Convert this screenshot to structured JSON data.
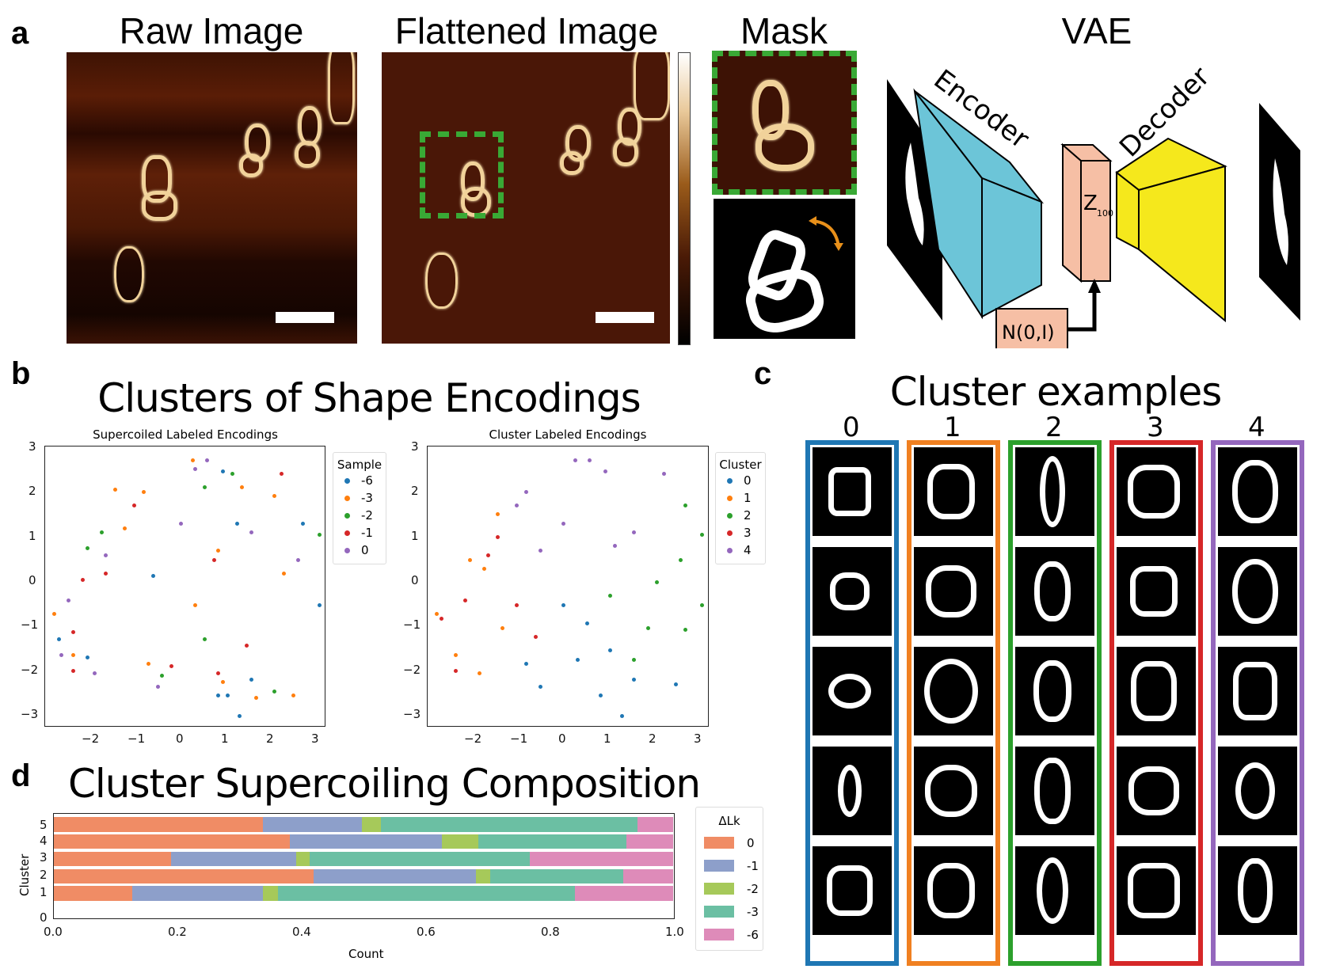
{
  "panel_a": {
    "label": "a",
    "raw_image_title": "Raw Image",
    "flattened_image_title": "Flattened Image",
    "mask_title": "Mask",
    "vae_title": "VAE",
    "vae": {
      "encoder_label": "Encoder",
      "decoder_label": "Decoder",
      "latent_label": "Z",
      "latent_subscript": "100",
      "prior_label": "N(0,I)",
      "colors": {
        "encoder": "#6cc5d8",
        "decoder": "#f5e81c",
        "latent": "#f6bfa5"
      }
    },
    "highlight_color": "#39a935",
    "rotation_arrow_color": "#e8901a"
  },
  "panel_b": {
    "label": "b",
    "title": "Clusters of Shape Encodings",
    "left_plot": {
      "title": "Supercoiled Labeled Encodings",
      "legend_title": "Sample",
      "legend": [
        {
          "label": "-6",
          "color": "#1f77b4"
        },
        {
          "label": "-3",
          "color": "#ff7f0e"
        },
        {
          "label": "-2",
          "color": "#2ca02c"
        },
        {
          "label": "-1",
          "color": "#d62728"
        },
        {
          "label": "0",
          "color": "#9467bd"
        }
      ]
    },
    "right_plot": {
      "title": "Cluster Labeled Encodings",
      "legend_title": "Cluster",
      "legend": [
        {
          "label": "0",
          "color": "#1f77b4"
        },
        {
          "label": "1",
          "color": "#ff7f0e"
        },
        {
          "label": "2",
          "color": "#2ca02c"
        },
        {
          "label": "3",
          "color": "#d62728"
        },
        {
          "label": "4",
          "color": "#9467bd"
        }
      ]
    },
    "x_ticks": [
      "−2",
      "−1",
      "0",
      "1",
      "2",
      "3"
    ],
    "y_ticks": [
      "3",
      "2",
      "1",
      "0",
      "−1",
      "−2",
      "−3"
    ]
  },
  "panel_c": {
    "label": "c",
    "title": "Cluster examples",
    "columns": [
      {
        "label": "0",
        "color": "#1f77b4"
      },
      {
        "label": "1",
        "color": "#f08021"
      },
      {
        "label": "2",
        "color": "#2ca02c"
      },
      {
        "label": "3",
        "color": "#d62728"
      },
      {
        "label": "4",
        "color": "#9467bd"
      }
    ]
  },
  "panel_d": {
    "label": "d",
    "title": "Cluster Supercoiling Composition",
    "xlabel": "Count",
    "ylabel": "Cluster",
    "x_ticks": [
      "0.0",
      "0.2",
      "0.4",
      "0.6",
      "0.8",
      "1.0"
    ],
    "y_ticks": [
      "5",
      "4",
      "3",
      "2",
      "1",
      "0"
    ],
    "legend_title": "ΔLk",
    "legend": [
      {
        "label": "0",
        "color": "#f08c65"
      },
      {
        "label": "-1",
        "color": "#8d9fca"
      },
      {
        "label": "-2",
        "color": "#a6c95a"
      },
      {
        "label": "-3",
        "color": "#6bbfa3"
      },
      {
        "label": "-6",
        "color": "#de8bb9"
      }
    ]
  },
  "chart_data": [
    {
      "type": "scatter",
      "title": "Supercoiled Labeled Encodings",
      "xlabel": "",
      "ylabel": "",
      "xlim": [
        -2.9,
        3.1
      ],
      "ylim": [
        -3.2,
        3.0
      ],
      "legend_title": "Sample",
      "series": [
        {
          "name": "-6",
          "points": [
            [
              0.9,
              2.45
            ],
            [
              2.6,
              1.3
            ],
            [
              1.2,
              1.3
            ],
            [
              -2.6,
              -1.25
            ],
            [
              -2.0,
              -1.65
            ],
            [
              0.8,
              -2.5
            ],
            [
              1.0,
              -2.5
            ],
            [
              1.25,
              -2.95
            ],
            [
              1.5,
              -2.15
            ],
            [
              2.95,
              -0.5
            ],
            [
              -0.6,
              0.15
            ]
          ]
        },
        {
          "name": "-3",
          "points": [
            [
              0.25,
              2.7
            ],
            [
              -1.4,
              2.05
            ],
            [
              -0.8,
              2.0
            ],
            [
              1.3,
              2.1
            ],
            [
              2.0,
              1.9
            ],
            [
              -1.2,
              1.2
            ],
            [
              0.8,
              0.7
            ],
            [
              2.2,
              0.2
            ],
            [
              -2.7,
              -0.7
            ],
            [
              -2.3,
              -1.6
            ],
            [
              0.9,
              -2.2
            ],
            [
              2.4,
              -2.5
            ],
            [
              1.6,
              -2.55
            ],
            [
              -0.7,
              -1.8
            ],
            [
              0.3,
              -0.5
            ]
          ]
        },
        {
          "name": "-2",
          "points": [
            [
              1.1,
              2.4
            ],
            [
              0.5,
              2.1
            ],
            [
              -1.7,
              1.1
            ],
            [
              -2.0,
              0.75
            ],
            [
              2.95,
              1.05
            ],
            [
              -0.4,
              -2.05
            ],
            [
              2.0,
              -2.4
            ],
            [
              0.5,
              -1.25
            ]
          ]
        },
        {
          "name": "-1",
          "points": [
            [
              2.15,
              2.4
            ],
            [
              -1.0,
              1.7
            ],
            [
              -2.1,
              0.05
            ],
            [
              -2.3,
              -1.1
            ],
            [
              -2.3,
              -1.95
            ],
            [
              -0.2,
              -1.85
            ],
            [
              0.8,
              -2.0
            ],
            [
              1.4,
              -1.4
            ],
            [
              0.7,
              0.5
            ],
            [
              -1.6,
              0.2
            ]
          ]
        },
        {
          "name": "0",
          "points": [
            [
              0.55,
              2.7
            ],
            [
              0.3,
              2.5
            ],
            [
              -1.6,
              0.6
            ],
            [
              -2.4,
              -0.4
            ],
            [
              -2.55,
              -1.6
            ],
            [
              -1.85,
              -2.0
            ],
            [
              -0.5,
              -2.3
            ],
            [
              2.5,
              0.5
            ],
            [
              1.5,
              1.1
            ],
            [
              0.0,
              1.3
            ]
          ]
        }
      ]
    },
    {
      "type": "scatter",
      "title": "Cluster Labeled Encodings",
      "xlabel": "",
      "ylabel": "",
      "xlim": [
        -2.9,
        3.1
      ],
      "ylim": [
        -3.2,
        3.0
      ],
      "legend_title": "Cluster",
      "series": [
        {
          "name": "0",
          "points": [
            [
              0.0,
              -0.5
            ],
            [
              0.5,
              -0.9
            ],
            [
              1.0,
              -1.5
            ],
            [
              1.25,
              -2.95
            ],
            [
              0.8,
              -2.5
            ],
            [
              -0.5,
              -2.3
            ],
            [
              -0.8,
              -1.8
            ],
            [
              1.5,
              -2.15
            ],
            [
              2.4,
              -2.25
            ],
            [
              0.3,
              -1.7
            ]
          ]
        },
        {
          "name": "1",
          "points": [
            [
              -2.7,
              -0.7
            ],
            [
              -2.3,
              -1.6
            ],
            [
              -1.8,
              -2.0
            ],
            [
              -1.4,
              1.5
            ],
            [
              -2.0,
              0.5
            ],
            [
              -1.3,
              -1.0
            ],
            [
              -1.7,
              0.3
            ]
          ]
        },
        {
          "name": "2",
          "points": [
            [
              2.6,
              1.7
            ],
            [
              2.95,
              1.05
            ],
            [
              2.5,
              0.5
            ],
            [
              2.95,
              -0.5
            ],
            [
              1.8,
              -1.0
            ],
            [
              1.5,
              -1.7
            ],
            [
              2.0,
              0.0
            ],
            [
              1.0,
              -0.3
            ],
            [
              2.6,
              -1.05
            ]
          ]
        },
        {
          "name": "3",
          "points": [
            [
              -2.3,
              -1.95
            ],
            [
              -2.6,
              -0.8
            ],
            [
              -2.1,
              -0.4
            ],
            [
              -1.6,
              0.6
            ],
            [
              -1.4,
              1.0
            ],
            [
              -1.0,
              -0.5
            ],
            [
              -0.6,
              -1.2
            ]
          ]
        },
        {
          "name": "4",
          "points": [
            [
              0.25,
              2.7
            ],
            [
              0.55,
              2.7
            ],
            [
              0.9,
              2.45
            ],
            [
              2.15,
              2.4
            ],
            [
              -0.8,
              2.0
            ],
            [
              0.0,
              1.3
            ],
            [
              1.5,
              1.1
            ],
            [
              -0.5,
              0.7
            ],
            [
              1.1,
              0.8
            ],
            [
              -1.0,
              1.7
            ]
          ]
        }
      ]
    },
    {
      "type": "bar",
      "orientation": "horizontal",
      "stacked": true,
      "title": "Cluster Supercoiling Composition",
      "xlabel": "Count",
      "ylabel": "Cluster",
      "xlim": [
        0.0,
        1.0
      ],
      "categories": [
        "1",
        "2",
        "3",
        "4",
        "5"
      ],
      "legend_title": "ΔLk",
      "series": [
        {
          "name": "0",
          "values": [
            0.126,
            0.42,
            0.189,
            0.381,
            0.337
          ]
        },
        {
          "name": "-1",
          "values": [
            0.212,
            0.262,
            0.202,
            0.245,
            0.16
          ]
        },
        {
          "name": "-2",
          "values": [
            0.024,
            0.023,
            0.022,
            0.06,
            0.031
          ]
        },
        {
          "name": "-3",
          "values": [
            0.48,
            0.215,
            0.355,
            0.239,
            0.414
          ]
        },
        {
          "name": "-6",
          "values": [
            0.158,
            0.08,
            0.232,
            0.075,
            0.058
          ]
        }
      ]
    }
  ]
}
